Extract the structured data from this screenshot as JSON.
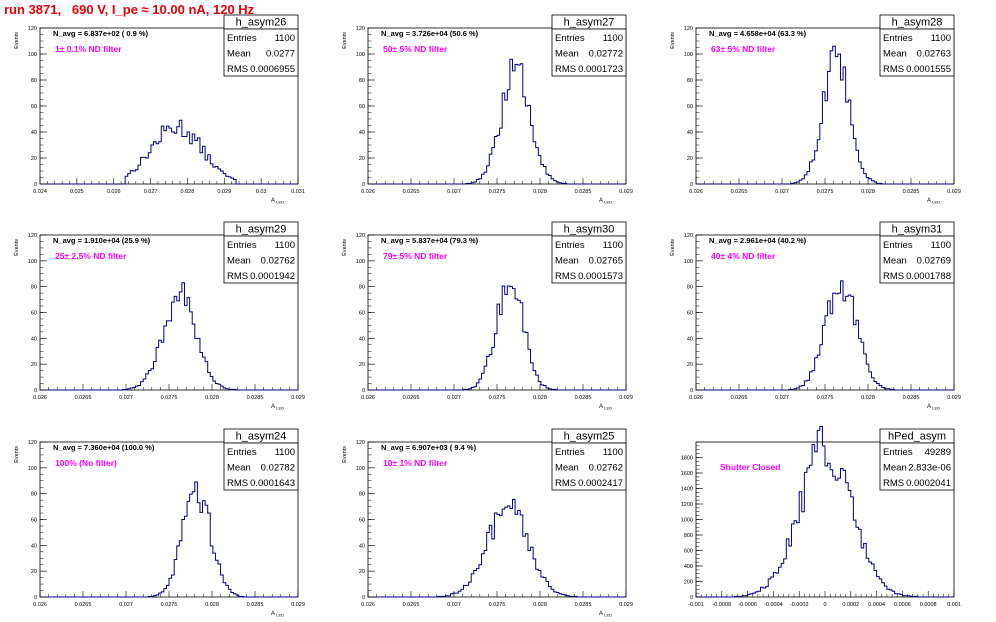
{
  "page": {
    "title": "run 3871,   690 V, I_pe ≈ 10.00 nA, 120 Hz"
  },
  "colors": {
    "histogram": "#000080",
    "annotation": "#ff00ff",
    "title": "#e8000b",
    "axis": "#000000"
  },
  "chart_data": [
    {
      "type": "histogram",
      "name": "h_asym26",
      "stats": [
        [
          "Entries",
          "1100"
        ],
        [
          "Mean",
          "0.0277"
        ],
        [
          "RMS",
          "0.0006955"
        ]
      ],
      "navg": "N_avg = 6.837e+02 ( 0.9 %)",
      "annotation": "1± 0.1% ND filter",
      "ylabel": "Events",
      "xlabel": "A ",
      "xlabel_sub": "LED",
      "xlim": [
        0.024,
        0.031
      ],
      "ylim": [
        0,
        120
      ],
      "xticks": [
        "0.024",
        "0.025",
        "0.026",
        "0.027",
        "0.028",
        "0.029",
        "0.03",
        "0.031"
      ],
      "yticks": [
        "0",
        "20",
        "40",
        "60",
        "80",
        "100",
        "120"
      ],
      "distribution": {
        "mean": 0.0277,
        "sigma": 0.000695,
        "peak": 44,
        "range": [
          0.0263,
          0.0293
        ]
      }
    },
    {
      "type": "histogram",
      "name": "h_asym27",
      "stats": [
        [
          "Entries",
          "1100"
        ],
        [
          "Mean",
          "0.02772"
        ],
        [
          "RMS",
          "0.0001723"
        ]
      ],
      "navg": "N_avg = 3.726e+04 (50.6 %)",
      "annotation": "50± 5% ND filter",
      "ylabel": "Events",
      "xlabel": "A ",
      "xlabel_sub": "LED",
      "xlim": [
        0.026,
        0.029
      ],
      "ylim": [
        0,
        120
      ],
      "xticks": [
        "0.026",
        "0.0265",
        "0.027",
        "0.0275",
        "0.028",
        "0.0285",
        "0.029"
      ],
      "yticks": [
        "0",
        "20",
        "40",
        "60",
        "80",
        "100",
        "120"
      ],
      "distribution": {
        "mean": 0.02772,
        "sigma": 0.000172,
        "peak": 86,
        "range": [
          0.0271,
          0.0284
        ]
      }
    },
    {
      "type": "histogram",
      "name": "h_asym28",
      "stats": [
        [
          "Entries",
          "1100"
        ],
        [
          "Mean",
          "0.02763"
        ],
        [
          "RMS",
          "0.0001555"
        ]
      ],
      "navg": "N_avg = 4.658e+04 (63.3 %)",
      "annotation": "63± 5% ND filter",
      "ylabel": "Events",
      "xlabel": "A ",
      "xlabel_sub": "LED",
      "xlim": [
        0.026,
        0.029
      ],
      "ylim": [
        0,
        120
      ],
      "xticks": [
        "0.026",
        "0.0265",
        "0.027",
        "0.0275",
        "0.028",
        "0.0285",
        "0.029"
      ],
      "yticks": [
        "0",
        "20",
        "40",
        "60",
        "80",
        "100",
        "120"
      ],
      "distribution": {
        "mean": 0.02763,
        "sigma": 0.000155,
        "peak": 94,
        "range": [
          0.027,
          0.0283
        ]
      }
    },
    {
      "type": "histogram",
      "name": "h_asym29",
      "stats": [
        [
          "Entries",
          "1100"
        ],
        [
          "Mean",
          "0.02762"
        ],
        [
          "RMS",
          "0.0001942"
        ]
      ],
      "navg": "N_avg = 1.910e+04 (25.9 %)",
      "annotation": "25± 2.5% ND filter",
      "ylabel": "Events",
      "xlabel": "A ",
      "xlabel_sub": "LED",
      "xlim": [
        0.026,
        0.029
      ],
      "ylim": [
        0,
        120
      ],
      "xticks": [
        "0.026",
        "0.0265",
        "0.027",
        "0.0275",
        "0.028",
        "0.0285",
        "0.029"
      ],
      "yticks": [
        "0",
        "20",
        "40",
        "60",
        "80",
        "100",
        "120"
      ],
      "distribution": {
        "mean": 0.02762,
        "sigma": 0.000194,
        "peak": 73,
        "range": [
          0.0269,
          0.0284
        ]
      }
    },
    {
      "type": "histogram",
      "name": "h_asym30",
      "stats": [
        [
          "Entries",
          "1100"
        ],
        [
          "Mean",
          "0.02765"
        ],
        [
          "RMS",
          "0.0001573"
        ]
      ],
      "navg": "N_avg = 5.837e+04 (79.3 %)",
      "annotation": "79± 5% ND filter",
      "ylabel": "Events",
      "xlabel": "A ",
      "xlabel_sub": "LED",
      "xlim": [
        0.026,
        0.029
      ],
      "ylim": [
        0,
        120
      ],
      "xticks": [
        "0.026",
        "0.0265",
        "0.027",
        "0.0275",
        "0.028",
        "0.0285",
        "0.029"
      ],
      "yticks": [
        "0",
        "20",
        "40",
        "60",
        "80",
        "100",
        "120"
      ],
      "distribution": {
        "mean": 0.02765,
        "sigma": 0.000157,
        "peak": 84,
        "range": [
          0.027,
          0.0284
        ]
      }
    },
    {
      "type": "histogram",
      "name": "h_asym31",
      "stats": [
        [
          "Entries",
          "1100"
        ],
        [
          "Mean",
          "0.02769"
        ],
        [
          "RMS",
          "0.0001788"
        ]
      ],
      "navg": "N_avg = 2.961e+04 (40.2 %)",
      "annotation": "40± 4% ND filter",
      "ylabel": "Events",
      "xlabel": "A ",
      "xlabel_sub": "LED",
      "xlim": [
        0.026,
        0.029
      ],
      "ylim": [
        0,
        120
      ],
      "xticks": [
        "0.026",
        "0.0265",
        "0.027",
        "0.0275",
        "0.028",
        "0.0285",
        "0.029"
      ],
      "yticks": [
        "0",
        "20",
        "40",
        "60",
        "80",
        "100",
        "120"
      ],
      "distribution": {
        "mean": 0.02769,
        "sigma": 0.000179,
        "peak": 85,
        "range": [
          0.027,
          0.0284
        ]
      }
    },
    {
      "type": "histogram",
      "name": "h_asym24",
      "stats": [
        [
          "Entries",
          "1100"
        ],
        [
          "Mean",
          "0.02782"
        ],
        [
          "RMS",
          "0.0001643"
        ]
      ],
      "navg": "N_avg = 7.360e+04 (100.0 %)",
      "annotation": "100% (No filter)",
      "ylabel": "Events",
      "xlabel": "A ",
      "xlabel_sub": "LED",
      "xlim": [
        0.026,
        0.029
      ],
      "ylim": [
        0,
        120
      ],
      "xticks": [
        "0.026",
        "0.0265",
        "0.027",
        "0.0275",
        "0.028",
        "0.0285",
        "0.029"
      ],
      "yticks": [
        "0",
        "20",
        "40",
        "60",
        "80",
        "100",
        "120"
      ],
      "distribution": {
        "mean": 0.02782,
        "sigma": 0.000164,
        "peak": 84,
        "range": [
          0.0272,
          0.0285
        ]
      }
    },
    {
      "type": "histogram",
      "name": "h_asym25",
      "stats": [
        [
          "Entries",
          "1100"
        ],
        [
          "Mean",
          "0.02762"
        ],
        [
          "RMS",
          "0.0002417"
        ]
      ],
      "navg": "N_avg = 6.907e+03 ( 9.4 %)",
      "annotation": "10± 1% ND filter",
      "ylabel": "Events",
      "xlabel": "A ",
      "xlabel_sub": "LED",
      "xlim": [
        0.026,
        0.029
      ],
      "ylim": [
        0,
        120
      ],
      "xticks": [
        "0.026",
        "0.0265",
        "0.027",
        "0.0275",
        "0.028",
        "0.0285",
        "0.029"
      ],
      "yticks": [
        "0",
        "20",
        "40",
        "60",
        "80",
        "100",
        "120"
      ],
      "distribution": {
        "mean": 0.02762,
        "sigma": 0.000242,
        "peak": 68,
        "range": [
          0.0268,
          0.0286
        ]
      }
    },
    {
      "type": "histogram",
      "name": "hPed_asym",
      "stats": [
        [
          "Entries",
          "49289"
        ],
        [
          "Mean",
          "2.833e-06"
        ],
        [
          "RMS",
          "0.0002041"
        ]
      ],
      "navg": "",
      "annotation": "Shutter Closed",
      "ylabel": "",
      "xlabel": "",
      "xlabel_sub": "",
      "xlim": [
        -0.001,
        0.001
      ],
      "ylim": [
        0,
        2000
      ],
      "xticks": [
        "-0.001",
        "-0.0008",
        "-0.0006",
        "-0.0004",
        "-0.0002",
        "0",
        "0.0002",
        "0.0004",
        "0.0006",
        "0.0008",
        "0.001"
      ],
      "yticks": [
        "0",
        "200",
        "400",
        "600",
        "800",
        "1000",
        "1200",
        "1400",
        "1600",
        "1800"
      ],
      "distribution": {
        "mean": 2.8e-06,
        "sigma": 0.000204,
        "peak": 1900,
        "range": [
          -0.00085,
          0.00085
        ]
      }
    }
  ]
}
